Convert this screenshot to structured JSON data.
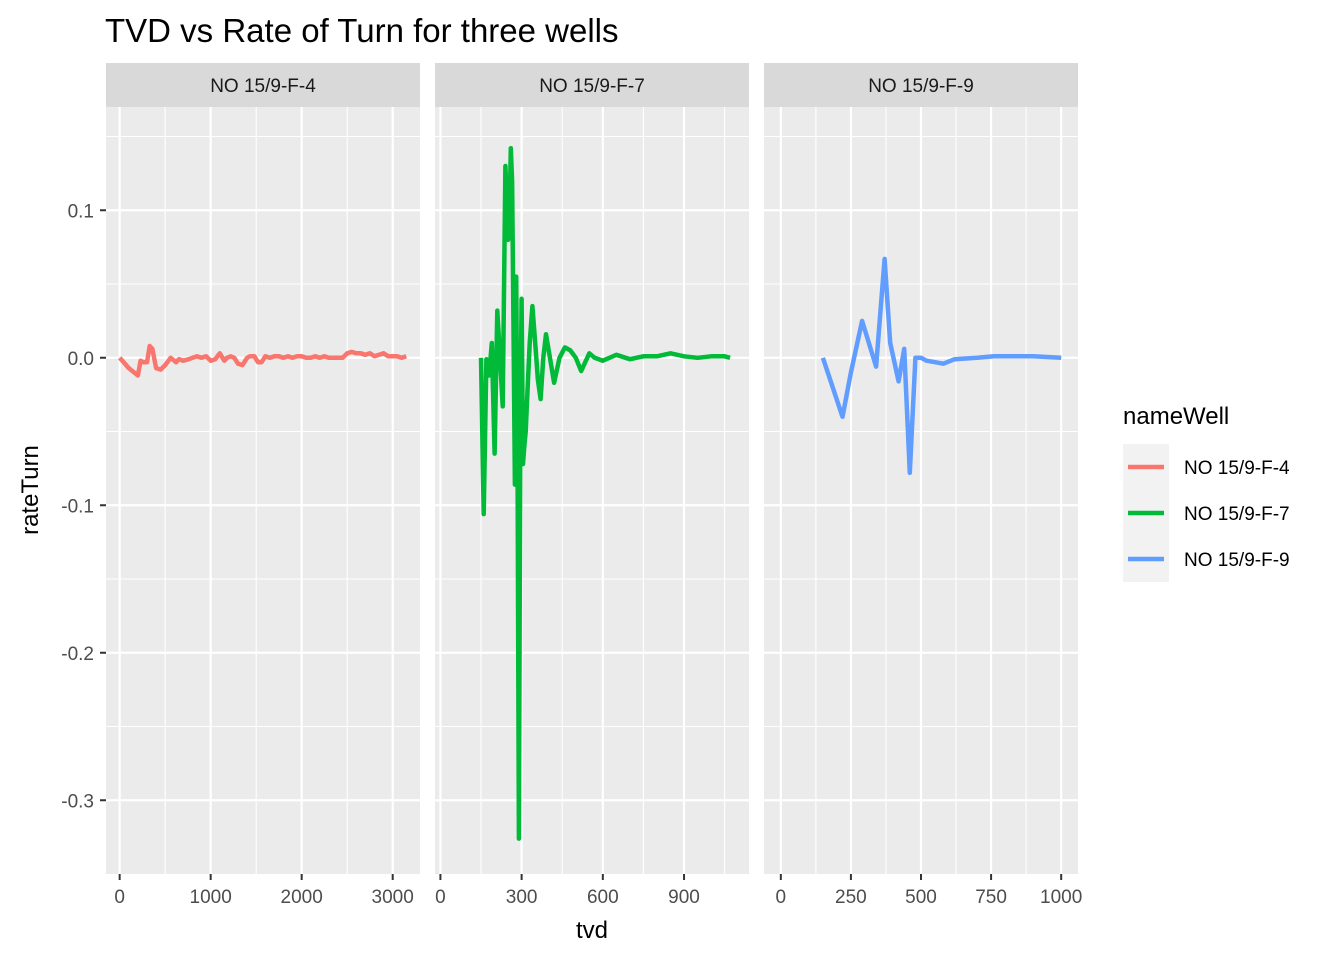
{
  "chart_data": {
    "type": "line",
    "title": "TVD vs Rate of Turn for three wells",
    "xlabel": "tvd",
    "ylabel": "rateTurn",
    "ylim": [
      -0.35,
      0.17
    ],
    "y_ticks": [
      0.1,
      0.0,
      -0.1,
      -0.2,
      -0.3
    ],
    "y_tick_labels": [
      "0.1",
      "0.0",
      "-0.1",
      "-0.2",
      "-0.3"
    ],
    "grid": true,
    "legend": {
      "title": "nameWell",
      "placement": "right"
    },
    "panels": [
      {
        "strip": "NO 15/9-F-4",
        "xlim": [
          -150,
          3300
        ],
        "x_ticks": [
          0,
          1000,
          2000,
          3000
        ],
        "x_tick_labels": [
          "0",
          "1000",
          "2000",
          "3000"
        ],
        "series": "NO 15/9-F-4"
      },
      {
        "strip": "NO 15/9-F-7",
        "xlim": [
          -20,
          1140
        ],
        "x_ticks": [
          0,
          300,
          600,
          900
        ],
        "x_tick_labels": [
          "0",
          "300",
          "600",
          "900"
        ],
        "series": "NO 15/9-F-7"
      },
      {
        "strip": "NO 15/9-F-9",
        "xlim": [
          -60,
          1060
        ],
        "x_ticks": [
          0,
          250,
          500,
          750,
          1000
        ],
        "x_tick_labels": [
          "0",
          "250",
          "500",
          "750",
          "1000"
        ],
        "series": "NO 15/9-F-9"
      }
    ],
    "series": [
      {
        "name": "NO 15/9-F-4",
        "color": "#F8766D",
        "x": [
          0,
          100,
          200,
          230,
          260,
          300,
          330,
          360,
          400,
          450,
          500,
          560,
          620,
          650,
          700,
          760,
          800,
          850,
          900,
          950,
          1000,
          1050,
          1100,
          1150,
          1180,
          1220,
          1260,
          1300,
          1350,
          1400,
          1430,
          1480,
          1520,
          1560,
          1600,
          1650,
          1700,
          1750,
          1800,
          1850,
          1900,
          1950,
          2000,
          2050,
          2100,
          2150,
          2200,
          2250,
          2300,
          2350,
          2400,
          2450,
          2500,
          2550,
          2600,
          2650,
          2700,
          2750,
          2800,
          2850,
          2900,
          2950,
          3000,
          3050,
          3100,
          3150
        ],
        "y": [
          0.0,
          -0.007,
          -0.012,
          -0.002,
          -0.003,
          -0.003,
          0.008,
          0.006,
          -0.007,
          -0.008,
          -0.005,
          0.0,
          -0.003,
          -0.001,
          -0.002,
          -0.001,
          0.0,
          0.001,
          0.0,
          0.001,
          -0.002,
          -0.001,
          0.003,
          -0.002,
          0.0,
          0.001,
          0.0,
          -0.004,
          -0.005,
          0.0,
          0.001,
          0.001,
          -0.003,
          -0.003,
          0.001,
          0.0,
          0.001,
          0.001,
          0.0,
          0.001,
          0.0,
          0.001,
          0.001,
          0.0,
          0.0,
          0.001,
          0.0,
          0.001,
          0.0,
          0.0,
          0.0,
          0.0,
          0.003,
          0.004,
          0.003,
          0.003,
          0.002,
          0.003,
          0.001,
          0.002,
          0.003,
          0.001,
          0.001,
          0.001,
          0.0,
          0.001
        ]
      },
      {
        "name": "NO 15/9-F-7",
        "color": "#00BA38",
        "x": [
          150,
          160,
          170,
          180,
          190,
          200,
          210,
          220,
          230,
          240,
          250,
          255,
          260,
          265,
          270,
          275,
          280,
          285,
          290,
          295,
          300,
          305,
          310,
          315,
          320,
          330,
          340,
          350,
          360,
          370,
          380,
          390,
          400,
          420,
          440,
          460,
          480,
          500,
          520,
          550,
          570,
          600,
          650,
          700,
          750,
          800,
          850,
          900,
          950,
          1000,
          1050,
          1070
        ],
        "y": [
          0.0,
          -0.106,
          -0.001,
          -0.012,
          0.01,
          -0.065,
          0.032,
          0.0,
          -0.033,
          0.13,
          0.08,
          0.09,
          0.142,
          0.12,
          0.02,
          -0.086,
          0.055,
          -0.08,
          -0.326,
          -0.05,
          0.04,
          -0.072,
          -0.06,
          -0.05,
          -0.03,
          0.01,
          0.035,
          0.01,
          -0.015,
          -0.028,
          0.0,
          0.016,
          0.005,
          -0.017,
          0.0,
          0.007,
          0.005,
          0.0,
          -0.009,
          0.003,
          0.0,
          -0.002,
          0.002,
          -0.001,
          0.001,
          0.001,
          0.003,
          0.001,
          0.0,
          0.001,
          0.001,
          0.0
        ]
      },
      {
        "name": "NO 15/9-F-9",
        "color": "#619CFF",
        "x": [
          150,
          220,
          250,
          290,
          340,
          370,
          390,
          420,
          440,
          460,
          480,
          500,
          520,
          550,
          580,
          620,
          700,
          760,
          800,
          850,
          900,
          1000
        ],
        "y": [
          0.0,
          -0.04,
          -0.01,
          0.025,
          -0.006,
          0.067,
          0.01,
          -0.016,
          0.006,
          -0.078,
          0.0,
          0.0,
          -0.002,
          -0.003,
          -0.004,
          -0.001,
          0.0,
          0.001,
          0.001,
          0.001,
          0.001,
          0.0
        ]
      }
    ]
  }
}
